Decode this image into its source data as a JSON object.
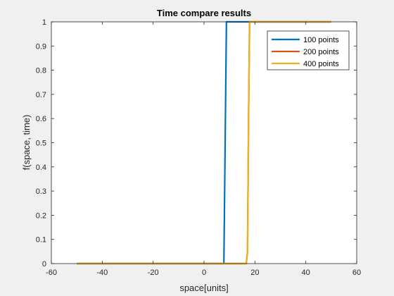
{
  "chart_data": {
    "type": "line",
    "title": "Time compare results",
    "xlabel": "space[units]",
    "ylabel": "f(space, time)",
    "xlim": [
      -60,
      60
    ],
    "ylim": [
      0,
      1
    ],
    "xticks": [
      -60,
      -40,
      -20,
      0,
      20,
      40,
      60
    ],
    "yticks": [
      0,
      0.1,
      0.2,
      0.3,
      0.4,
      0.5,
      0.6,
      0.7,
      0.8,
      0.9,
      1
    ],
    "xtick_labels": [
      "-60",
      "-40",
      "-20",
      "0",
      "20",
      "40",
      "60"
    ],
    "ytick_labels": [
      "0",
      "0.1",
      "0.2",
      "0.3",
      "0.4",
      "0.5",
      "0.6",
      "0.7",
      "0.8",
      "0.9",
      "1"
    ],
    "grid": false,
    "legend_position": "top-right",
    "series": [
      {
        "name": "100 points",
        "color": "#0072BD",
        "x": [
          -50,
          7.8,
          8.8,
          50
        ],
        "y": [
          0,
          0,
          1,
          1
        ]
      },
      {
        "name": "200 points",
        "color": "#D95319",
        "x": [
          -50,
          16.6,
          17.1,
          17.5,
          17.9,
          50
        ],
        "y": [
          0,
          0,
          0.05,
          0.6,
          1,
          1
        ]
      },
      {
        "name": "400 points",
        "color": "#EDB120",
        "x": [
          -50,
          16.6,
          17.1,
          17.5,
          17.9,
          50
        ],
        "y": [
          0,
          0,
          0.05,
          0.6,
          1,
          1
        ]
      }
    ]
  }
}
